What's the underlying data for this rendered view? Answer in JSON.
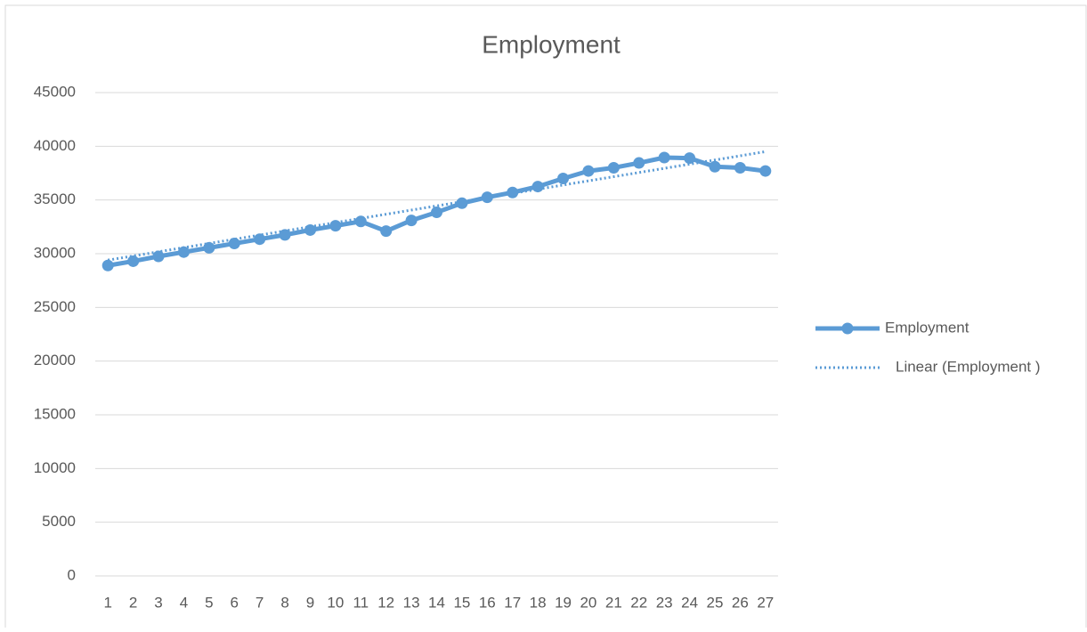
{
  "chart_data": {
    "type": "line",
    "title": "Employment",
    "x": [
      1,
      2,
      3,
      4,
      5,
      6,
      7,
      8,
      9,
      10,
      11,
      12,
      13,
      14,
      15,
      16,
      17,
      18,
      19,
      20,
      21,
      22,
      23,
      24,
      25,
      26,
      27
    ],
    "xlim": [
      0.5,
      27.5
    ],
    "xticks": [
      1,
      2,
      3,
      4,
      5,
      6,
      7,
      8,
      9,
      10,
      11,
      12,
      13,
      14,
      15,
      16,
      17,
      18,
      19,
      20,
      21,
      22,
      23,
      24,
      25,
      26,
      27
    ],
    "ylim": [
      0,
      45000
    ],
    "yticks": [
      0,
      5000,
      10000,
      15000,
      20000,
      25000,
      30000,
      35000,
      40000,
      45000
    ],
    "grid": true,
    "legend": "right",
    "series": [
      {
        "name": "Employment",
        "color": "#5b9bd5",
        "values": [
          28900,
          29300,
          29750,
          30150,
          30550,
          30950,
          31350,
          31750,
          32200,
          32600,
          33000,
          32100,
          33100,
          33850,
          34700,
          35250,
          35700,
          36250,
          37000,
          37700,
          38000,
          38450,
          38950,
          38900,
          38100,
          38000,
          37700
        ]
      }
    ],
    "trendline": {
      "name": "Linear (Employment )",
      "color": "#5b9bd5",
      "x": [
        1,
        27
      ],
      "values": [
        29400,
        39500
      ]
    }
  }
}
